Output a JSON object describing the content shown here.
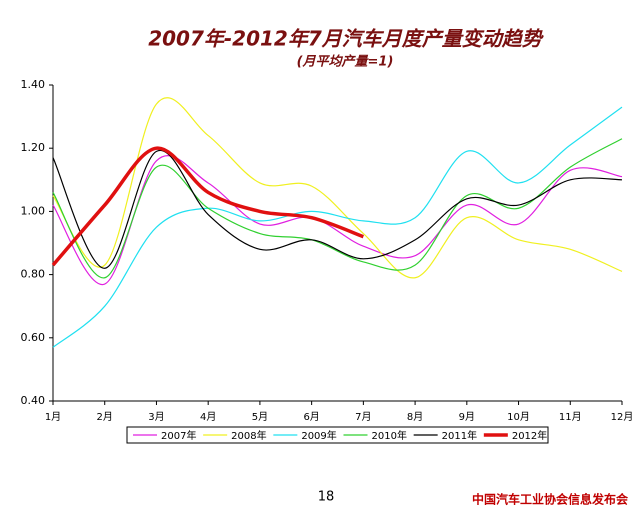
{
  "chart_data": {
    "type": "line",
    "title": "2007年-2012年7月汽车月度产量变动趋势",
    "subtitle": "(月平均产量=1)",
    "categories": [
      "1月",
      "2月",
      "3月",
      "4月",
      "5月",
      "6月",
      "7月",
      "8月",
      "9月",
      "10月",
      "11月",
      "12月"
    ],
    "series": [
      {
        "name": "2007年",
        "color": "#e020e0",
        "values": [
          1.02,
          0.77,
          1.16,
          1.09,
          0.96,
          0.98,
          0.89,
          0.86,
          1.02,
          0.96,
          1.13,
          1.11
        ]
      },
      {
        "name": "2008年",
        "color": "#f0f020",
        "values": [
          1.05,
          0.83,
          1.34,
          1.24,
          1.09,
          1.08,
          0.93,
          0.79,
          0.98,
          0.91,
          0.88,
          0.81
        ]
      },
      {
        "name": "2009年",
        "color": "#20e0f0",
        "values": [
          0.57,
          0.7,
          0.95,
          1.01,
          0.97,
          1.0,
          0.97,
          0.98,
          1.19,
          1.09,
          1.21,
          1.33
        ]
      },
      {
        "name": "2010年",
        "color": "#30d030",
        "values": [
          1.06,
          0.79,
          1.14,
          1.01,
          0.93,
          0.91,
          0.84,
          0.83,
          1.05,
          1.01,
          1.14,
          1.23
        ]
      },
      {
        "name": "2011年",
        "color": "#000000",
        "values": [
          1.17,
          0.82,
          1.19,
          0.99,
          0.88,
          0.91,
          0.85,
          0.91,
          1.04,
          1.02,
          1.1,
          1.1
        ]
      },
      {
        "name": "2012年",
        "color": "#e01010",
        "values": [
          0.83,
          1.02,
          1.2,
          1.06,
          1.0,
          0.98,
          0.92,
          null,
          null,
          null,
          null,
          null
        ]
      }
    ],
    "ylim": [
      0.4,
      1.4
    ],
    "yticks": [
      {
        "value": 0.4,
        "label": "0.40"
      },
      {
        "value": 0.6,
        "label": "0.60"
      },
      {
        "value": 0.8,
        "label": "0.80"
      },
      {
        "value": 1.0,
        "label": "1.00"
      },
      {
        "value": 1.2,
        "label": "1.20"
      },
      {
        "value": 1.4,
        "label": "1.40"
      }
    ],
    "legend": "bottom"
  },
  "page_number": "18",
  "footer": "中国汽车工业协会信息发布会"
}
